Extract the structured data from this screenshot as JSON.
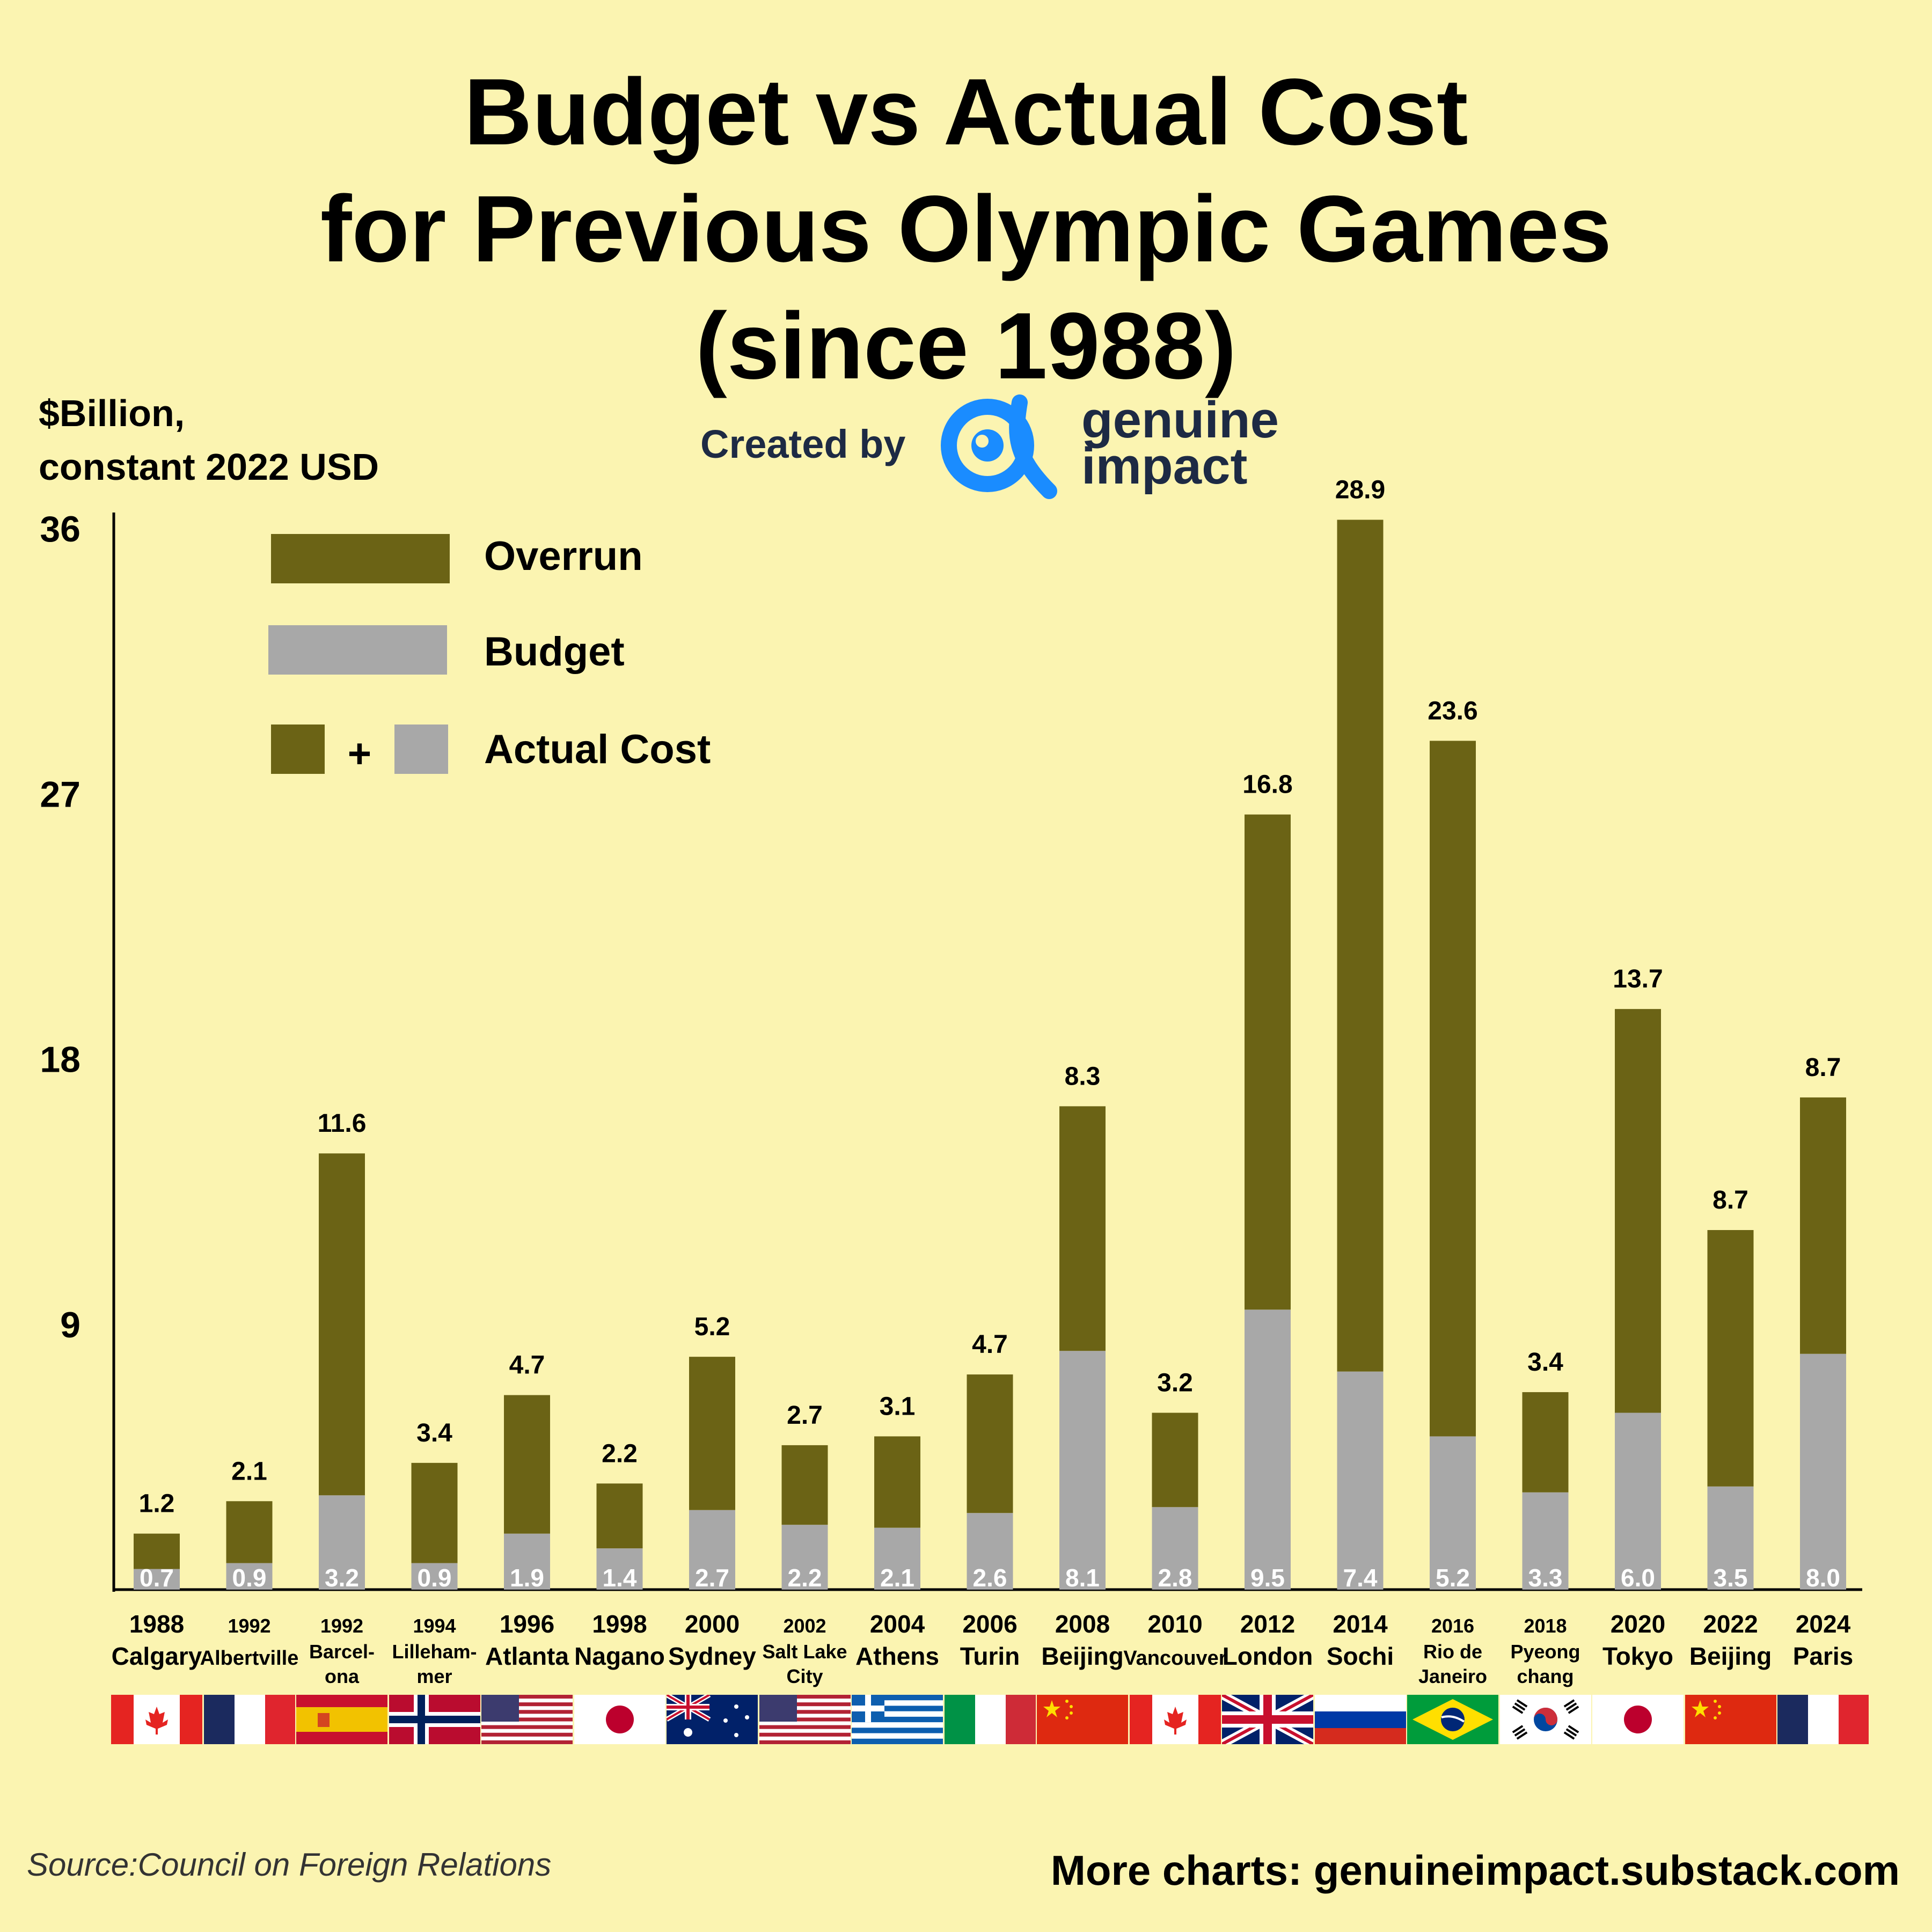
{
  "title": {
    "line1": "Budget vs Actual Cost",
    "line2": "for Previous Olympic Games",
    "line3": "(since 1988)"
  },
  "unit_label": {
    "line1": "$Billion,",
    "line2": "constant 2022 USD"
  },
  "credit": {
    "created_by": "Created by",
    "brand_line1": "genuine",
    "brand_line2": "impact"
  },
  "legend": {
    "overrun": "Overrun",
    "budget": "Budget",
    "plus": "+",
    "actual": "Actual Cost"
  },
  "colors": {
    "background": "#fbf4b1",
    "overrun": "#6b6315",
    "budget": "#a8a8a8",
    "brand_blue": "#1a8cff",
    "brand_text": "#1d2a44"
  },
  "chart_data": {
    "type": "bar",
    "stacked": true,
    "title": "Budget vs Actual Cost for Previous Olympic Games (since 1988)",
    "ylabel": "$Billion, constant 2022 USD",
    "ylim": [
      0,
      36
    ],
    "yticks": [
      9,
      18,
      27,
      36
    ],
    "legend_position": "top-left",
    "categories": [
      {
        "year": "1988",
        "city": "Calgary",
        "flag": "canada"
      },
      {
        "year": "1992",
        "city": "Albertville",
        "flag": "france"
      },
      {
        "year": "1992",
        "city": "Barcel-\nona",
        "flag": "spain"
      },
      {
        "year": "1994",
        "city": "Lilleham-\nmer",
        "flag": "norway"
      },
      {
        "year": "1996",
        "city": "Atlanta",
        "flag": "usa"
      },
      {
        "year": "1998",
        "city": "Nagano",
        "flag": "japan"
      },
      {
        "year": "2000",
        "city": "Sydney",
        "flag": "australia"
      },
      {
        "year": "2002",
        "city": "Salt Lake\nCity",
        "flag": "usa"
      },
      {
        "year": "2004",
        "city": "Athens",
        "flag": "greece"
      },
      {
        "year": "2006",
        "city": "Turin",
        "flag": "italy"
      },
      {
        "year": "2008",
        "city": "Beijing",
        "flag": "china"
      },
      {
        "year": "2010",
        "city": "Vancouver",
        "flag": "canada"
      },
      {
        "year": "2012",
        "city": "London",
        "flag": "uk"
      },
      {
        "year": "2014",
        "city": "Sochi",
        "flag": "russia"
      },
      {
        "year": "2016",
        "city": "Rio de\nJaneiro",
        "flag": "brazil"
      },
      {
        "year": "2018",
        "city": "Pyeong\nchang",
        "flag": "korea"
      },
      {
        "year": "2020",
        "city": "Tokyo",
        "flag": "japan"
      },
      {
        "year": "2022",
        "city": "Beijing",
        "flag": "china"
      },
      {
        "year": "2024",
        "city": "Paris",
        "flag": "france"
      }
    ],
    "series": [
      {
        "name": "Budget",
        "values": [
          0.7,
          0.9,
          3.2,
          0.9,
          1.9,
          1.4,
          2.7,
          2.2,
          2.1,
          2.6,
          8.1,
          2.8,
          9.5,
          7.4,
          5.2,
          3.3,
          6.0,
          3.5,
          8.0
        ]
      },
      {
        "name": "Overrun",
        "values": [
          1.2,
          2.1,
          11.6,
          3.4,
          4.7,
          2.2,
          5.2,
          2.7,
          3.1,
          4.7,
          8.3,
          3.2,
          16.8,
          28.9,
          23.6,
          3.4,
          13.7,
          8.7,
          8.7
        ]
      }
    ]
  },
  "footer": {
    "source": "Source:Council on Foreign Relations",
    "more": "More charts: genuineimpact.substack.com"
  }
}
